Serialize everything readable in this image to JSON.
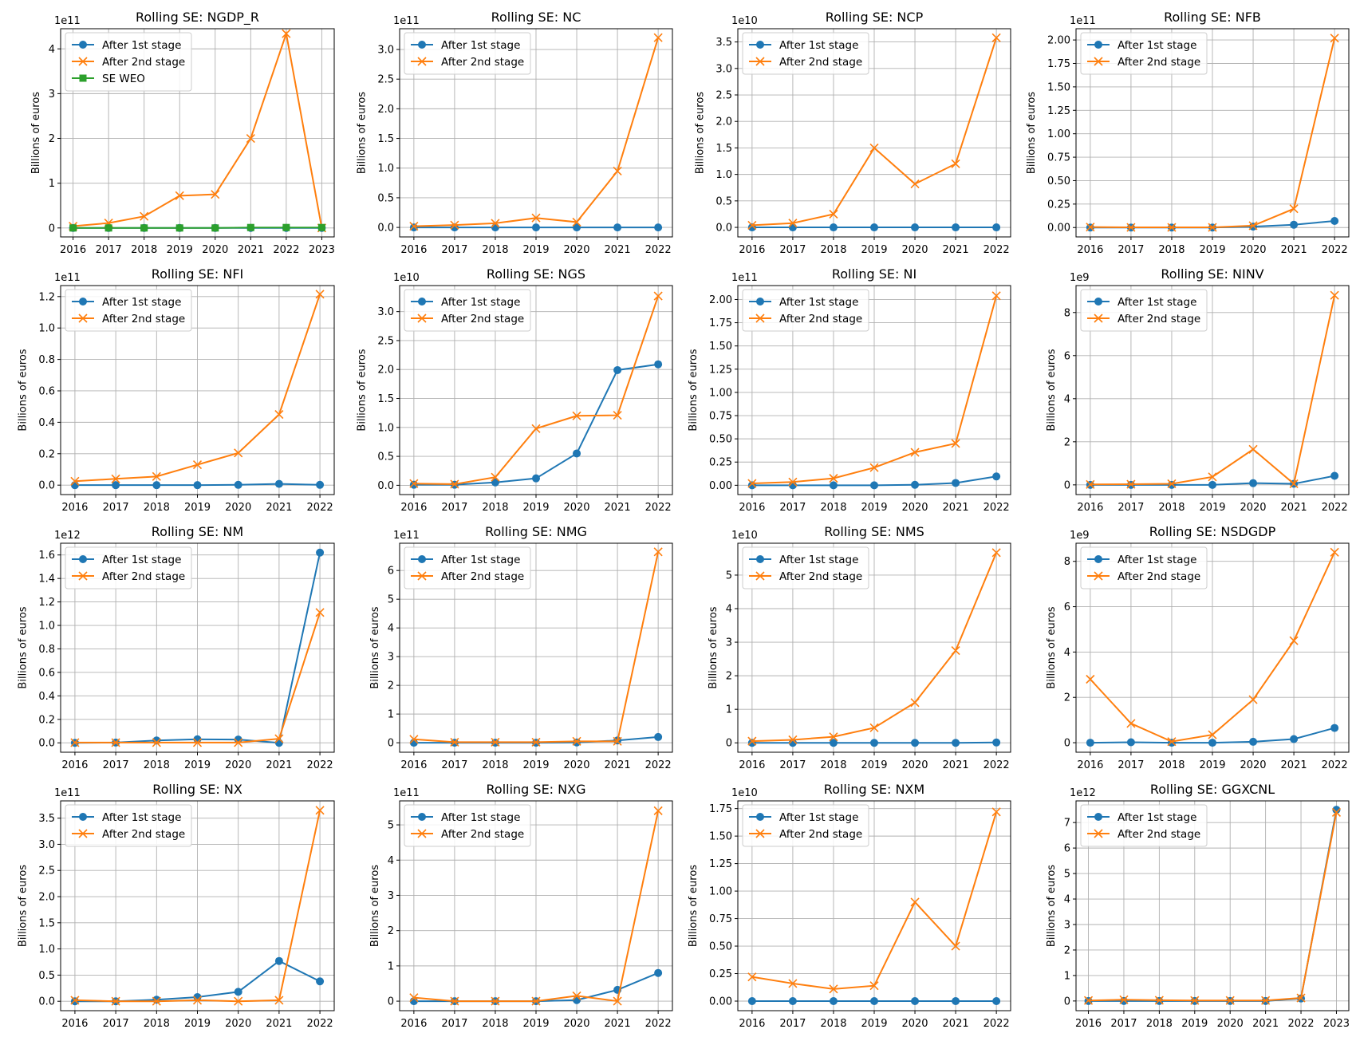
{
  "colors": {
    "after_1st_stage": "#1f77b4",
    "after_2nd_stage": "#ff7f0e",
    "se_weo": "#2ca02c",
    "grid": "#b0b0b0"
  },
  "chart_data": [
    {
      "type": "line",
      "title": "Rolling SE: NGDP_R",
      "ylabel": "Billions of euros",
      "offset_text": "1e11",
      "exponent": 11,
      "x": [
        "2016",
        "2017",
        "2018",
        "2019",
        "2020",
        "2021",
        "2022",
        "2023"
      ],
      "ylim": [
        -0.2,
        4.45
      ],
      "yticks": [
        "0",
        "1",
        "2",
        "3",
        "4"
      ],
      "legend_position": "upper-left",
      "series": [
        {
          "name": "After 1st stage",
          "marker": "circle",
          "values": [
            0,
            0,
            0,
            0,
            0,
            0,
            0,
            0
          ]
        },
        {
          "name": "After 2nd stage",
          "marker": "x",
          "values": [
            0.04,
            0.11,
            0.26,
            0.72,
            0.75,
            2.0,
            4.34,
            0.0
          ]
        },
        {
          "name": "SE WEO",
          "marker": "square",
          "values": [
            0,
            0,
            0,
            0,
            0,
            0.01,
            0.01,
            0.01
          ]
        }
      ]
    },
    {
      "type": "line",
      "title": "Rolling SE: NC",
      "ylabel": "Billions of euros",
      "offset_text": "1e11",
      "exponent": 11,
      "x": [
        "2016",
        "2017",
        "2018",
        "2019",
        "2020",
        "2021",
        "2022"
      ],
      "ylim": [
        -0.16,
        3.35
      ],
      "yticks": [
        "0.0",
        "0.5",
        "1.0",
        "1.5",
        "2.0",
        "2.5",
        "3.0"
      ],
      "legend_position": "upper-left",
      "series": [
        {
          "name": "After 1st stage",
          "marker": "circle",
          "values": [
            0,
            0,
            0,
            0,
            0,
            0,
            0
          ]
        },
        {
          "name": "After 2nd stage",
          "marker": "x",
          "values": [
            0.02,
            0.04,
            0.07,
            0.16,
            0.09,
            0.95,
            3.2
          ]
        }
      ]
    },
    {
      "type": "line",
      "title": "Rolling SE: NCP",
      "ylabel": "Billions of euros",
      "offset_text": "1e10",
      "exponent": 10,
      "x": [
        "2016",
        "2017",
        "2018",
        "2019",
        "2020",
        "2021",
        "2022"
      ],
      "ylim": [
        -0.18,
        3.75
      ],
      "yticks": [
        "0.0",
        "0.5",
        "1.0",
        "1.5",
        "2.0",
        "2.5",
        "3.0",
        "3.5"
      ],
      "legend_position": "upper-left",
      "series": [
        {
          "name": "After 1st stage",
          "marker": "circle",
          "values": [
            0,
            0,
            0,
            0,
            0,
            0,
            0
          ]
        },
        {
          "name": "After 2nd stage",
          "marker": "x",
          "values": [
            0.04,
            0.08,
            0.25,
            1.5,
            0.82,
            1.2,
            3.58
          ]
        }
      ]
    },
    {
      "type": "line",
      "title": "Rolling SE: NFB",
      "ylabel": "Billions of euros",
      "offset_text": "1e11",
      "exponent": 11,
      "x": [
        "2016",
        "2017",
        "2018",
        "2019",
        "2020",
        "2021",
        "2022"
      ],
      "ylim": [
        -0.1,
        2.12
      ],
      "yticks": [
        "0.00",
        "0.25",
        "0.50",
        "0.75",
        "1.00",
        "1.25",
        "1.50",
        "1.75",
        "2.00"
      ],
      "legend_position": "upper-left",
      "series": [
        {
          "name": "After 1st stage",
          "marker": "circle",
          "values": [
            0,
            0,
            0,
            0,
            0.01,
            0.03,
            0.07
          ]
        },
        {
          "name": "After 2nd stage",
          "marker": "x",
          "values": [
            0.005,
            0.002,
            0.002,
            0.002,
            0.02,
            0.2,
            2.02
          ]
        }
      ]
    },
    {
      "type": "line",
      "title": "Rolling SE: NFI",
      "ylabel": "Billions of euros",
      "offset_text": "1e11",
      "exponent": 11,
      "x": [
        "2016",
        "2017",
        "2018",
        "2019",
        "2020",
        "2021",
        "2022"
      ],
      "ylim": [
        -0.06,
        1.27
      ],
      "yticks": [
        "0.0",
        "0.2",
        "0.4",
        "0.6",
        "0.8",
        "1.0",
        "1.2"
      ],
      "legend_position": "upper-left",
      "series": [
        {
          "name": "After 1st stage",
          "marker": "circle",
          "values": [
            0,
            0,
            0,
            0,
            0.002,
            0.008,
            0.002
          ]
        },
        {
          "name": "After 2nd stage",
          "marker": "x",
          "values": [
            0.025,
            0.04,
            0.055,
            0.13,
            0.205,
            0.45,
            1.215
          ]
        }
      ]
    },
    {
      "type": "line",
      "title": "Rolling SE: NGS",
      "ylabel": "Billions of euros",
      "offset_text": "1e10",
      "exponent": 10,
      "x": [
        "2016",
        "2017",
        "2018",
        "2019",
        "2020",
        "2021",
        "2022"
      ],
      "ylim": [
        -0.16,
        3.45
      ],
      "yticks": [
        "0.0",
        "0.5",
        "1.0",
        "1.5",
        "2.0",
        "2.5",
        "3.0"
      ],
      "legend_position": "upper-left",
      "series": [
        {
          "name": "After 1st stage",
          "marker": "circle",
          "values": [
            0.01,
            0.01,
            0.05,
            0.12,
            0.55,
            1.99,
            2.09
          ]
        },
        {
          "name": "After 2nd stage",
          "marker": "x",
          "values": [
            0.03,
            0.02,
            0.14,
            0.98,
            1.2,
            1.21,
            3.27
          ]
        }
      ]
    },
    {
      "type": "line",
      "title": "Rolling SE: NI",
      "ylabel": "Billions of euros",
      "offset_text": "1e11",
      "exponent": 11,
      "x": [
        "2016",
        "2017",
        "2018",
        "2019",
        "2020",
        "2021",
        "2022"
      ],
      "ylim": [
        -0.1,
        2.15
      ],
      "yticks": [
        "0.00",
        "0.25",
        "0.50",
        "0.75",
        "1.00",
        "1.25",
        "1.50",
        "1.75",
        "2.00"
      ],
      "legend_position": "upper-left",
      "series": [
        {
          "name": "After 1st stage",
          "marker": "circle",
          "values": [
            0,
            0,
            0,
            0,
            0.005,
            0.025,
            0.095
          ]
        },
        {
          "name": "After 2nd stage",
          "marker": "x",
          "values": [
            0.02,
            0.035,
            0.075,
            0.19,
            0.355,
            0.45,
            2.04
          ]
        }
      ]
    },
    {
      "type": "line",
      "title": "Rolling SE: NINV",
      "ylabel": "Billions of euros",
      "offset_text": "1e9",
      "exponent": 9,
      "x": [
        "2016",
        "2017",
        "2018",
        "2019",
        "2020",
        "2021",
        "2022"
      ],
      "ylim": [
        -0.45,
        9.25
      ],
      "yticks": [
        "0",
        "2",
        "4",
        "6",
        "8"
      ],
      "legend_position": "upper-left",
      "series": [
        {
          "name": "After 1st stage",
          "marker": "circle",
          "values": [
            0,
            0,
            0,
            0,
            0.08,
            0.05,
            0.42
          ]
        },
        {
          "name": "After 2nd stage",
          "marker": "x",
          "values": [
            0.02,
            0.03,
            0.05,
            0.37,
            1.65,
            0.05,
            8.8
          ]
        }
      ]
    },
    {
      "type": "line",
      "title": "Rolling SE: NM",
      "ylabel": "Billions of euros",
      "offset_text": "1e12",
      "exponent": 12,
      "x": [
        "2016",
        "2017",
        "2018",
        "2019",
        "2020",
        "2021",
        "2022"
      ],
      "ylim": [
        -0.08,
        1.7
      ],
      "yticks": [
        "0.0",
        "0.2",
        "0.4",
        "0.6",
        "0.8",
        "1.0",
        "1.2",
        "1.4",
        "1.6"
      ],
      "legend_position": "upper-left",
      "series": [
        {
          "name": "After 1st stage",
          "marker": "circle",
          "values": [
            0,
            0.002,
            0.02,
            0.03,
            0.028,
            0.0,
            1.62
          ]
        },
        {
          "name": "After 2nd stage",
          "marker": "x",
          "values": [
            0.002,
            0.002,
            0.002,
            0.002,
            0.002,
            0.035,
            1.11
          ]
        }
      ]
    },
    {
      "type": "line",
      "title": "Rolling SE: NMG",
      "ylabel": "Billions of euros",
      "offset_text": "1e11",
      "exponent": 11,
      "x": [
        "2016",
        "2017",
        "2018",
        "2019",
        "2020",
        "2021",
        "2022"
      ],
      "ylim": [
        -0.33,
        6.95
      ],
      "yticks": [
        "0",
        "1",
        "2",
        "3",
        "4",
        "5",
        "6"
      ],
      "legend_position": "upper-left",
      "series": [
        {
          "name": "After 1st stage",
          "marker": "circle",
          "values": [
            0,
            0,
            0,
            0,
            0.01,
            0.08,
            0.2
          ]
        },
        {
          "name": "After 2nd stage",
          "marker": "x",
          "values": [
            0.12,
            0.02,
            0.02,
            0.02,
            0.05,
            0.05,
            6.65
          ]
        }
      ]
    },
    {
      "type": "line",
      "title": "Rolling SE: NMS",
      "ylabel": "Billions of euros",
      "offset_text": "1e10",
      "exponent": 10,
      "x": [
        "2016",
        "2017",
        "2018",
        "2019",
        "2020",
        "2021",
        "2022"
      ],
      "ylim": [
        -0.28,
        5.95
      ],
      "yticks": [
        "0",
        "1",
        "2",
        "3",
        "4",
        "5"
      ],
      "legend_position": "upper-left",
      "series": [
        {
          "name": "After 1st stage",
          "marker": "circle",
          "values": [
            0,
            0,
            0,
            0,
            0,
            0,
            0.01
          ]
        },
        {
          "name": "After 2nd stage",
          "marker": "x",
          "values": [
            0.05,
            0.09,
            0.18,
            0.45,
            1.2,
            2.75,
            5.67
          ]
        }
      ]
    },
    {
      "type": "line",
      "title": "Rolling SE: NSDGDP",
      "ylabel": "Billions of euros",
      "offset_text": "1e9",
      "exponent": 9,
      "x": [
        "2016",
        "2017",
        "2018",
        "2019",
        "2020",
        "2021",
        "2022"
      ],
      "ylim": [
        -0.42,
        8.8
      ],
      "yticks": [
        "0",
        "2",
        "4",
        "6",
        "8"
      ],
      "legend_position": "upper-left",
      "series": [
        {
          "name": "After 1st stage",
          "marker": "circle",
          "values": [
            0.0,
            0.02,
            0.0,
            0.0,
            0.04,
            0.16,
            0.65
          ]
        },
        {
          "name": "After 2nd stage",
          "marker": "x",
          "values": [
            2.8,
            0.85,
            0.05,
            0.35,
            1.9,
            4.5,
            8.4
          ]
        }
      ]
    },
    {
      "type": "line",
      "title": "Rolling SE: NX",
      "ylabel": "Billions of euros",
      "offset_text": "1e11",
      "exponent": 11,
      "x": [
        "2016",
        "2017",
        "2018",
        "2019",
        "2020",
        "2021",
        "2022"
      ],
      "ylim": [
        -0.18,
        3.83
      ],
      "yticks": [
        "0.0",
        "0.5",
        "1.0",
        "1.5",
        "2.0",
        "2.5",
        "3.0",
        "3.5"
      ],
      "legend_position": "upper-left",
      "series": [
        {
          "name": "After 1st stage",
          "marker": "circle",
          "values": [
            0,
            0,
            0.03,
            0.08,
            0.18,
            0.77,
            0.38
          ]
        },
        {
          "name": "After 2nd stage",
          "marker": "x",
          "values": [
            0.02,
            0.0,
            0.0,
            0.02,
            0.0,
            0.02,
            3.65
          ]
        }
      ]
    },
    {
      "type": "line",
      "title": "Rolling SE: NXG",
      "ylabel": "Billions of euros",
      "offset_text": "1e11",
      "exponent": 11,
      "x": [
        "2016",
        "2017",
        "2018",
        "2019",
        "2020",
        "2021",
        "2022"
      ],
      "ylim": [
        -0.27,
        5.68
      ],
      "yticks": [
        "0",
        "1",
        "2",
        "3",
        "4",
        "5"
      ],
      "legend_position": "upper-left",
      "series": [
        {
          "name": "After 1st stage",
          "marker": "circle",
          "values": [
            0,
            0,
            0,
            0,
            0.03,
            0.32,
            0.8
          ]
        },
        {
          "name": "After 2nd stage",
          "marker": "x",
          "values": [
            0.1,
            0.0,
            0.0,
            0.0,
            0.15,
            0.0,
            5.4
          ]
        }
      ]
    },
    {
      "type": "line",
      "title": "Rolling SE: NXM",
      "ylabel": "Billions of euros",
      "offset_text": "1e10",
      "exponent": 10,
      "x": [
        "2016",
        "2017",
        "2018",
        "2019",
        "2020",
        "2021",
        "2022"
      ],
      "ylim": [
        -0.087,
        1.82
      ],
      "yticks": [
        "0.00",
        "0.25",
        "0.50",
        "0.75",
        "1.00",
        "1.25",
        "1.50",
        "1.75"
      ],
      "legend_position": "upper-left",
      "series": [
        {
          "name": "After 1st stage",
          "marker": "circle",
          "values": [
            0,
            0,
            0,
            0,
            0,
            0,
            0
          ]
        },
        {
          "name": "After 2nd stage",
          "marker": "x",
          "values": [
            0.22,
            0.16,
            0.11,
            0.14,
            0.9,
            0.5,
            1.72
          ]
        }
      ]
    },
    {
      "type": "line",
      "title": "Rolling SE: GGXCNL",
      "ylabel": "Billions of euros",
      "offset_text": "1e12",
      "exponent": 12,
      "x": [
        "2016",
        "2017",
        "2018",
        "2019",
        "2020",
        "2021",
        "2022",
        "2023"
      ],
      "ylim": [
        -0.38,
        7.85
      ],
      "yticks": [
        "0",
        "1",
        "2",
        "3",
        "4",
        "5",
        "6",
        "7"
      ],
      "legend_position": "upper-left",
      "series": [
        {
          "name": "After 1st stage",
          "marker": "circle",
          "values": [
            0,
            0,
            0,
            0,
            0,
            0,
            0.1,
            7.5
          ]
        },
        {
          "name": "After 2nd stage",
          "marker": "x",
          "values": [
            0.02,
            0.05,
            0.03,
            0.02,
            0.02,
            0.02,
            0.12,
            7.4
          ]
        }
      ]
    }
  ]
}
